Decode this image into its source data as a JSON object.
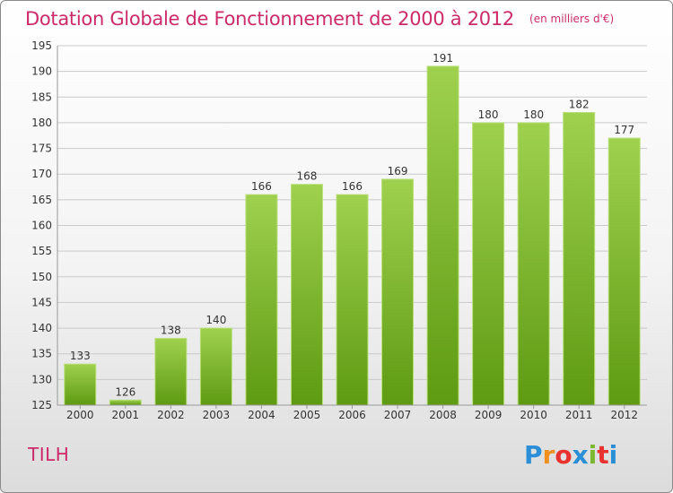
{
  "header": {
    "title": "Dotation Globale de Fonctionnement de 2000 à 2012",
    "subtitle": "(en milliers d'€)"
  },
  "footer": {
    "commune": "TILH",
    "brand": "Proxiti",
    "brand_colors": [
      "#2a8fd6",
      "#f0901e",
      "#e8322f",
      "#2a8fd6",
      "#7cb82f",
      "#e8322f",
      "#2a8fd6"
    ]
  },
  "colors": {
    "accent": "#cc2a6a",
    "bar_top": "#9fd14f",
    "bar_bottom": "#5e9a12",
    "grid": "#c9c9c9"
  },
  "chart_data": {
    "type": "bar",
    "title": "Dotation Globale de Fonctionnement de 2000 à 2012",
    "subtitle": "(en milliers d'€)",
    "xlabel": "",
    "ylabel": "",
    "categories": [
      "2000",
      "2001",
      "2002",
      "2003",
      "2004",
      "2005",
      "2006",
      "2007",
      "2008",
      "2009",
      "2010",
      "2011",
      "2012"
    ],
    "values": [
      133,
      126,
      138,
      140,
      166,
      168,
      166,
      169,
      191,
      180,
      180,
      182,
      177
    ],
    "ylim": [
      125,
      195
    ],
    "yticks": [
      125,
      130,
      135,
      140,
      145,
      150,
      155,
      160,
      165,
      170,
      175,
      180,
      185,
      190,
      195
    ],
    "grid": true,
    "data_labels": true
  }
}
